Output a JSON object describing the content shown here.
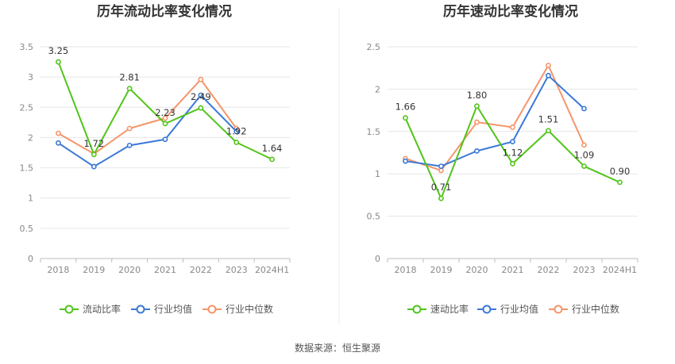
{
  "source": "数据来源：恒生聚源",
  "chart_data": [
    {
      "type": "line",
      "title": "历年流动比率变化情况",
      "categories": [
        "2018",
        "2019",
        "2020",
        "2021",
        "2022",
        "2023",
        "2024H1"
      ],
      "ylim": [
        0,
        3.5
      ],
      "yticks": [
        "0",
        "0.5",
        "1",
        "1.5",
        "2",
        "2.5",
        "3",
        "3.5"
      ],
      "grid": true,
      "legend_position": "bottom",
      "series": [
        {
          "name": "流动比率",
          "color": "#52c41a",
          "values": [
            3.25,
            1.72,
            2.81,
            2.23,
            2.49,
            1.92,
            1.64
          ],
          "labels": [
            "3.25",
            "1.72",
            "2.81",
            "2.23",
            "2.49",
            "1.92",
            "1.64"
          ]
        },
        {
          "name": "行业均值",
          "color": "#3a78d8",
          "values": [
            1.91,
            1.52,
            1.87,
            1.97,
            2.7,
            2.1,
            null
          ]
        },
        {
          "name": "行业中位数",
          "color": "#f4956a",
          "values": [
            2.07,
            1.73,
            2.15,
            2.32,
            2.96,
            2.15,
            null
          ]
        }
      ]
    },
    {
      "type": "line",
      "title": "历年速动比率变化情况",
      "categories": [
        "2018",
        "2019",
        "2020",
        "2021",
        "2022",
        "2023",
        "2024H1"
      ],
      "ylim": [
        0,
        2.5
      ],
      "yticks": [
        "0",
        "0.5",
        "1",
        "1.5",
        "2",
        "2.5"
      ],
      "grid": true,
      "legend_position": "bottom",
      "series": [
        {
          "name": "速动比率",
          "color": "#52c41a",
          "values": [
            1.66,
            0.71,
            1.8,
            1.12,
            1.51,
            1.09,
            0.9
          ],
          "labels": [
            "1.66",
            "0.71",
            "1.80",
            "1.12",
            "1.51",
            "1.09",
            "0.90"
          ]
        },
        {
          "name": "行业均值",
          "color": "#3a78d8",
          "values": [
            1.15,
            1.09,
            1.27,
            1.38,
            2.16,
            1.77,
            null
          ]
        },
        {
          "name": "行业中位数",
          "color": "#f4956a",
          "values": [
            1.18,
            1.04,
            1.61,
            1.55,
            2.28,
            1.34,
            null
          ]
        }
      ]
    }
  ]
}
